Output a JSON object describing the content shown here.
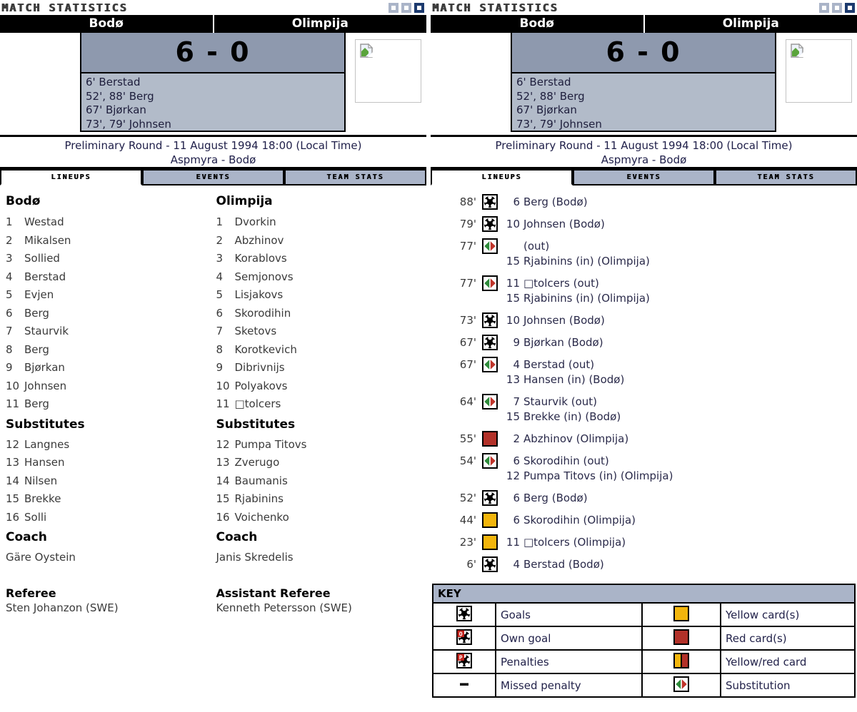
{
  "window": {
    "title": "MATCH STATISTICS",
    "control_icons": [
      "square-light-icon",
      "square-light-icon",
      "square-dark-icon"
    ]
  },
  "match": {
    "home_team": "Bodø",
    "away_team": "Olimpija",
    "score": "6 - 0",
    "scorers": [
      "6' Berstad",
      "52', 88' Berg",
      "67' Bjørkan",
      "73', 79' Johnsen"
    ],
    "round_line": "Preliminary Round - 11 August 1994 18:00 (Local Time)",
    "venue_line": "Aspmyra - Bodø",
    "image_placeholder": "broken-image-icon"
  },
  "tabs": [
    {
      "label": "LINEUPS",
      "active": true
    },
    {
      "label": "EVENTS",
      "active": false
    },
    {
      "label": "TEAM STATS",
      "active": false
    }
  ],
  "lineups": {
    "teams": [
      {
        "name": "Bodø",
        "players": [
          {
            "no": "1",
            "name": "Westad"
          },
          {
            "no": "2",
            "name": "Mikalsen"
          },
          {
            "no": "3",
            "name": "Sollied"
          },
          {
            "no": "4",
            "name": "Berstad"
          },
          {
            "no": "5",
            "name": "Evjen"
          },
          {
            "no": "6",
            "name": "Berg"
          },
          {
            "no": "7",
            "name": "Staurvik"
          },
          {
            "no": "8",
            "name": "Berg"
          },
          {
            "no": "9",
            "name": "Bjørkan"
          },
          {
            "no": "10",
            "name": "Johnsen"
          },
          {
            "no": "11",
            "name": "Berg"
          }
        ],
        "subs_heading": "Substitutes",
        "subs": [
          {
            "no": "12",
            "name": "Langnes"
          },
          {
            "no": "13",
            "name": "Hansen"
          },
          {
            "no": "14",
            "name": "Nilsen"
          },
          {
            "no": "15",
            "name": "Brekke"
          },
          {
            "no": "16",
            "name": "Solli"
          }
        ],
        "coach_heading": "Coach",
        "coach": "Gäre Oystein"
      },
      {
        "name": "Olimpija",
        "players": [
          {
            "no": "1",
            "name": "Dvorkin"
          },
          {
            "no": "2",
            "name": "Abzhinov"
          },
          {
            "no": "3",
            "name": "Korablovs"
          },
          {
            "no": "4",
            "name": "Semjonovs"
          },
          {
            "no": "5",
            "name": "Lisjakovs"
          },
          {
            "no": "6",
            "name": "Skorodihin"
          },
          {
            "no": "7",
            "name": "Sketovs"
          },
          {
            "no": "8",
            "name": "Korotkevich"
          },
          {
            "no": "9",
            "name": "Dibrivnijs"
          },
          {
            "no": "10",
            "name": "Polyakovs"
          },
          {
            "no": "11",
            "name": "□tolcers"
          }
        ],
        "subs_heading": "Substitutes",
        "subs": [
          {
            "no": "12",
            "name": "Pumpa Titovs"
          },
          {
            "no": "13",
            "name": "Zverugo"
          },
          {
            "no": "14",
            "name": "Baumanis"
          },
          {
            "no": "15",
            "name": "Rjabinins"
          },
          {
            "no": "16",
            "name": "Voichenko"
          }
        ],
        "coach_heading": "Coach",
        "coach": "Janis Skredelis"
      }
    ],
    "officials": [
      {
        "title": "Referee",
        "name": "Sten Johanzon (SWE)"
      },
      {
        "title": "Assistant Referee",
        "name": "Kenneth Petersson (SWE)"
      }
    ]
  },
  "events": [
    {
      "time": "88'",
      "icon": "goal-icon",
      "lines": [
        {
          "no": "6",
          "text": "Berg (Bodø)"
        }
      ]
    },
    {
      "time": "79'",
      "icon": "goal-icon",
      "lines": [
        {
          "no": "10",
          "text": "Johnsen (Bodø)"
        }
      ]
    },
    {
      "time": "77'",
      "icon": "substitution-icon",
      "lines": [
        {
          "no": "",
          "text": "(out)"
        },
        {
          "no": "15",
          "text": "Rjabinins (in) (Olimpija)"
        }
      ]
    },
    {
      "time": "77'",
      "icon": "substitution-icon",
      "lines": [
        {
          "no": "11",
          "text": "□tolcers (out)"
        },
        {
          "no": "15",
          "text": "Rjabinins (in) (Olimpija)"
        }
      ]
    },
    {
      "time": "73'",
      "icon": "goal-icon",
      "lines": [
        {
          "no": "10",
          "text": "Johnsen (Bodø)"
        }
      ]
    },
    {
      "time": "67'",
      "icon": "goal-icon",
      "lines": [
        {
          "no": "9",
          "text": "Bjørkan (Bodø)"
        }
      ]
    },
    {
      "time": "67'",
      "icon": "substitution-icon",
      "lines": [
        {
          "no": "4",
          "text": "Berstad (out)"
        },
        {
          "no": "13",
          "text": "Hansen (in) (Bodø)"
        }
      ]
    },
    {
      "time": "64'",
      "icon": "substitution-icon",
      "lines": [
        {
          "no": "7",
          "text": "Staurvik (out)"
        },
        {
          "no": "15",
          "text": "Brekke (in) (Bodø)"
        }
      ]
    },
    {
      "time": "55'",
      "icon": "red-card-icon",
      "lines": [
        {
          "no": "2",
          "text": "Abzhinov (Olimpija)"
        }
      ]
    },
    {
      "time": "54'",
      "icon": "substitution-icon",
      "lines": [
        {
          "no": "6",
          "text": "Skorodihin (out)"
        },
        {
          "no": "12",
          "text": "Pumpa Titovs (in) (Olimpija)"
        }
      ]
    },
    {
      "time": "52'",
      "icon": "goal-icon",
      "lines": [
        {
          "no": "6",
          "text": "Berg (Bodø)"
        }
      ]
    },
    {
      "time": "44'",
      "icon": "yellow-card-icon",
      "lines": [
        {
          "no": "6",
          "text": "Skorodihin (Olimpija)"
        }
      ]
    },
    {
      "time": "23'",
      "icon": "yellow-card-icon",
      "lines": [
        {
          "no": "11",
          "text": "□tolcers (Olimpija)"
        }
      ]
    },
    {
      "time": "6'",
      "icon": "goal-icon",
      "lines": [
        {
          "no": "4",
          "text": "Berstad (Bodø)"
        }
      ]
    }
  ],
  "key": {
    "title": "KEY",
    "rows": [
      [
        {
          "icon": "goal-icon",
          "label": "Goals"
        },
        {
          "icon": "yellow-card-icon",
          "label": "Yellow card(s)"
        }
      ],
      [
        {
          "icon": "own-goal-icon",
          "label": "Own goal"
        },
        {
          "icon": "red-card-icon",
          "label": "Red card(s)"
        }
      ],
      [
        {
          "icon": "penalty-icon",
          "label": "Penalties"
        },
        {
          "icon": "yellow-red-card-icon",
          "label": "Yellow/red card"
        }
      ],
      [
        {
          "icon": "missed-penalty-icon",
          "label": "Missed penalty"
        },
        {
          "icon": "substitution-icon",
          "label": "Substitution"
        }
      ]
    ]
  },
  "colors": {
    "steel_blue": "#aab4c8",
    "score_top_bg": "#8e99ae",
    "score_bottom_bg": "#b2bbc9",
    "dark_navy": "#1c3a6e",
    "yellow_card": "#f2b50c",
    "red_card": "#b23129",
    "sub_green": "#2e8b3a",
    "sub_red": "#c0352b",
    "text_dark": "#3a3a3a",
    "text_navy": "#2a2a4a"
  }
}
